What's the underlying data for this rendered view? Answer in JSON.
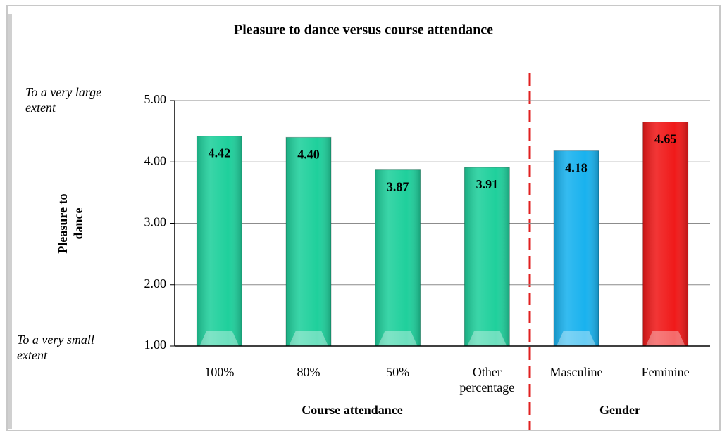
{
  "chart_data": {
    "type": "bar",
    "title": "Pleasure to dance versus course attendance",
    "y_label": "Pleasure to dance",
    "annotations": [
      "To a very large extent",
      "To a very small extent"
    ],
    "groups": [
      "Course attendance",
      "Gender"
    ],
    "categories": [
      "100%",
      "80%",
      "50%",
      "Other percentage",
      "Masculine",
      "Feminine"
    ],
    "values": [
      4.42,
      4.4,
      3.87,
      3.91,
      4.18,
      4.65
    ],
    "value_labels": [
      "4.42",
      "4.40",
      "3.87",
      "3.91",
      "4.18",
      "4.65"
    ],
    "colors": [
      "#1fd09c",
      "#1fd09c",
      "#1fd09c",
      "#1fd09c",
      "#19b2ee",
      "#f01a1a"
    ],
    "ylim": [
      1,
      5
    ],
    "yticks": [
      {
        "value": 1,
        "label": "1.00"
      },
      {
        "value": 2,
        "label": "2.00"
      },
      {
        "value": 3,
        "label": "3.00"
      },
      {
        "value": 4,
        "label": "4.00"
      },
      {
        "value": 5,
        "label": "5.00"
      }
    ],
    "grid": true
  }
}
